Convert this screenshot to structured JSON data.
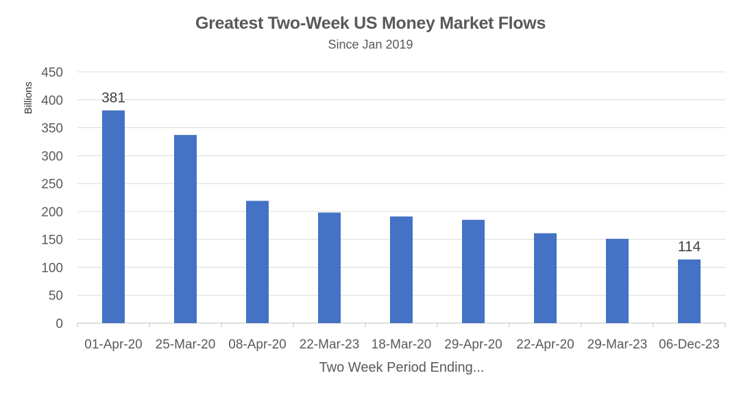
{
  "chart_data": {
    "type": "bar",
    "title": "Greatest Two-Week US Money Market Flows",
    "subtitle": "Since Jan 2019",
    "xlabel": "Two Week Period Ending...",
    "ylabel": "Billions",
    "categories": [
      "01-Apr-20",
      "25-Mar-20",
      "08-Apr-20",
      "22-Mar-23",
      "18-Mar-20",
      "29-Apr-20",
      "22-Apr-20",
      "29-Mar-23",
      "06-Dec-23"
    ],
    "values": [
      381,
      337,
      219,
      198,
      191,
      185,
      161,
      151,
      114
    ],
    "data_labels": [
      "381",
      "",
      "",
      "",
      "",
      "",
      "",
      "",
      "114"
    ],
    "ylim": [
      0,
      450
    ],
    "yticks": [
      0,
      50,
      100,
      150,
      200,
      250,
      300,
      350,
      400,
      450
    ],
    "grid": true,
    "legend": "none",
    "colors": {
      "bar": "#4472c4",
      "grid": "#d9d9d9",
      "text": "#595959"
    }
  }
}
